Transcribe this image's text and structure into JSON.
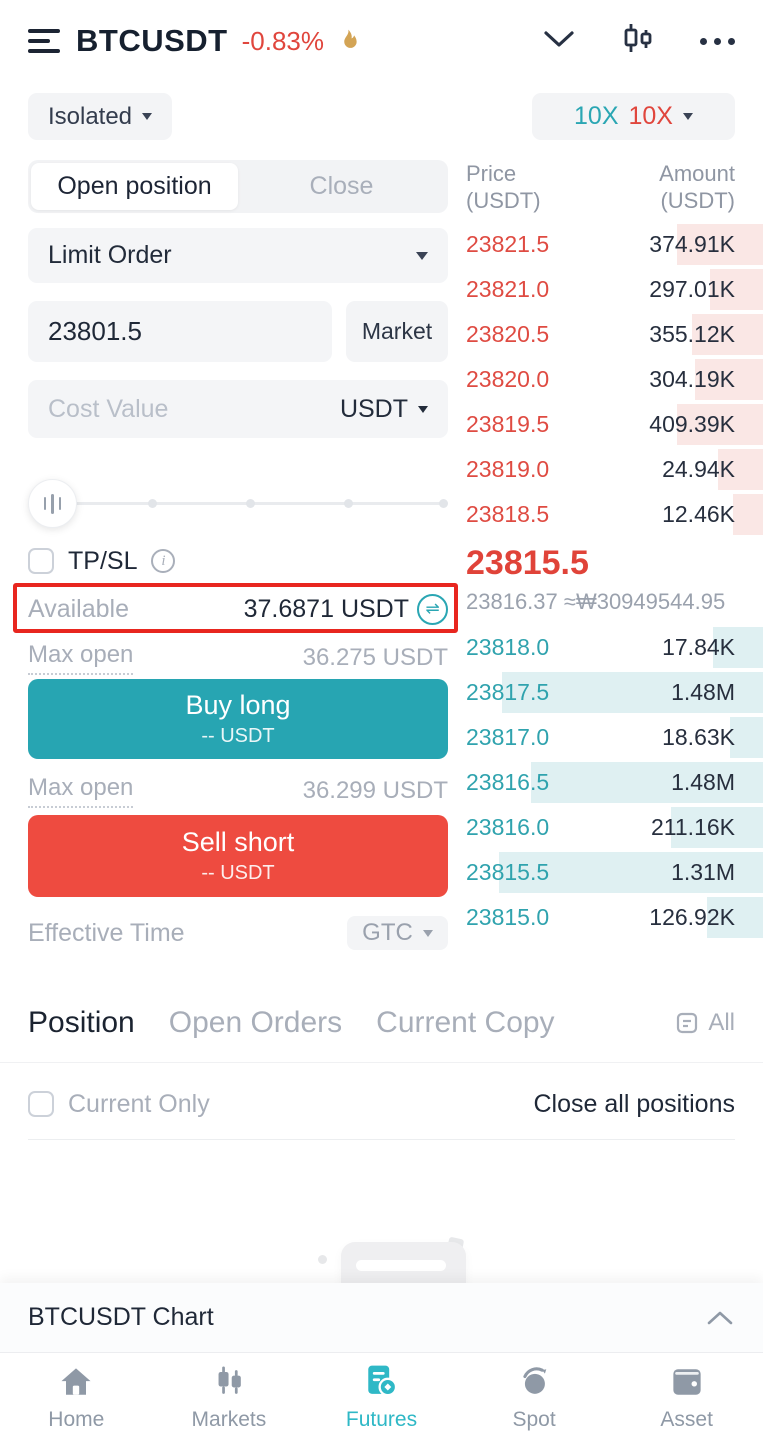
{
  "header": {
    "symbol": "BTCUSDT",
    "change_pct": "-0.83%"
  },
  "leverage": {
    "margin_mode": "Isolated",
    "long": "10X",
    "short": "10X"
  },
  "trade_panel": {
    "tabs": {
      "open": "Open position",
      "close": "Close"
    },
    "order_type": "Limit Order",
    "price_value": "23801.5",
    "market_label": "Market",
    "cost_placeholder": "Cost Value",
    "cost_unit": "USDT",
    "tpsl_label": "TP/SL",
    "available_label": "Available",
    "available_value": "37.6871 USDT",
    "swap_icon": "⇌",
    "max_open_label_long": "Max open",
    "max_open_long": "36.275 USDT",
    "max_open_label_short": "Max open",
    "max_open_short": "36.299 USDT",
    "buy_label": "Buy long",
    "buy_sub": "-- USDT",
    "sell_label": "Sell short",
    "sell_sub": "-- USDT",
    "effective_time_label": "Effective Time",
    "effective_time_value": "GTC"
  },
  "order_book": {
    "price_header": "Price\n(USDT)",
    "amount_header": "Amount\n(USDT)",
    "asks": [
      {
        "price": "23821.5",
        "amount": "374.91K",
        "depth": 29
      },
      {
        "price": "23821.0",
        "amount": "297.01K",
        "depth": 18
      },
      {
        "price": "23820.5",
        "amount": "355.12K",
        "depth": 24
      },
      {
        "price": "23820.0",
        "amount": "304.19K",
        "depth": 23
      },
      {
        "price": "23819.5",
        "amount": "409.39K",
        "depth": 29
      },
      {
        "price": "23819.0",
        "amount": "24.94K",
        "depth": 15
      },
      {
        "price": "23818.5",
        "amount": "12.46K",
        "depth": 10
      }
    ],
    "last_price": "23815.5",
    "index_line": "23816.37 ≈₩30949544.95",
    "bids": [
      {
        "price": "23818.0",
        "amount": "17.84K",
        "depth": 17
      },
      {
        "price": "23817.5",
        "amount": "1.48M",
        "depth": 88
      },
      {
        "price": "23817.0",
        "amount": "18.63K",
        "depth": 11
      },
      {
        "price": "23816.5",
        "amount": "1.48M",
        "depth": 78
      },
      {
        "price": "23816.0",
        "amount": "211.16K",
        "depth": 31
      },
      {
        "price": "23815.5",
        "amount": "1.31M",
        "depth": 89
      },
      {
        "price": "23815.0",
        "amount": "126.92K",
        "depth": 19
      }
    ]
  },
  "positions_section": {
    "tab_position": "Position",
    "tab_open_orders": "Open Orders",
    "tab_current_copy": "Current Copy",
    "all_label": "All",
    "current_only_label": "Current Only",
    "close_all_label": "Close all positions"
  },
  "chart_bar": {
    "title": "BTCUSDT Chart"
  },
  "bottom_nav": {
    "items": [
      {
        "label": "Home",
        "active": false
      },
      {
        "label": "Markets",
        "active": false
      },
      {
        "label": "Futures",
        "active": true
      },
      {
        "label": "Spot",
        "active": false
      },
      {
        "label": "Asset",
        "active": false
      }
    ]
  },
  "colors": {
    "buy": "#27a5b2",
    "sell": "#ee4b40",
    "ask_text": "#df4b42",
    "bid_text": "#30a3ae",
    "ask_depth": "#fae7e5",
    "bid_depth": "#dff0f2",
    "annotation": "#e8261f",
    "nav_active": "#2fb8c6"
  }
}
